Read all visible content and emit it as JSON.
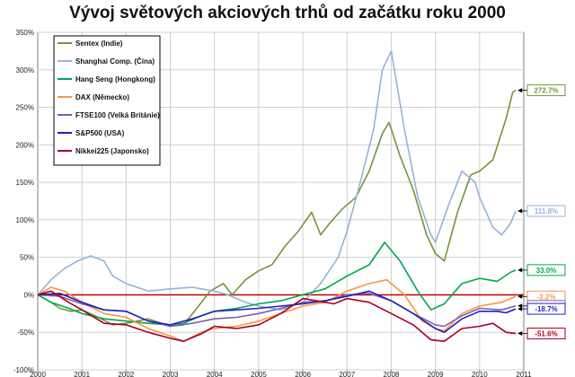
{
  "chart_data": {
    "type": "line",
    "title": "Vývoj světových akciových trhů od začátku roku 2000",
    "xlabel": "",
    "ylabel": "",
    "xlim": [
      2000,
      2011
    ],
    "ylim": [
      -100,
      350
    ],
    "x_ticks": [
      "2000",
      "2001",
      "2002",
      "2003",
      "2004",
      "2005",
      "2006",
      "2007",
      "2008",
      "2009",
      "2010",
      "2011"
    ],
    "y_ticks": [
      "-100%",
      "-50%",
      "0%",
      "50%",
      "100%",
      "150%",
      "200%",
      "250%",
      "300%",
      "350%"
    ],
    "grid": true,
    "legend_position": "top-left",
    "reference_line": {
      "y": 0,
      "color": "#c00000"
    },
    "series": [
      {
        "name": "Sentex (Indie)",
        "color": "#77933c",
        "end_label": "272.7%",
        "x": [
          2000,
          2000.25,
          2000.5,
          2000.75,
          2001,
          2001.3,
          2001.7,
          2002,
          2002.5,
          2003,
          2003.3,
          2003.6,
          2003.9,
          2004.2,
          2004.4,
          2004.7,
          2005,
          2005.3,
          2005.6,
          2005.9,
          2006.2,
          2006.4,
          2006.6,
          2006.9,
          2007.2,
          2007.5,
          2007.8,
          2007.95,
          2008.2,
          2008.5,
          2008.8,
          2009.0,
          2009.2,
          2009.5,
          2009.8,
          2010,
          2010.3,
          2010.6,
          2010.75,
          2010.82
        ],
        "y": [
          0,
          -8,
          -18,
          -22,
          -20,
          -28,
          -40,
          -38,
          -32,
          -42,
          -40,
          -18,
          5,
          15,
          0,
          20,
          32,
          40,
          65,
          85,
          110,
          80,
          95,
          115,
          130,
          165,
          215,
          230,
          185,
          140,
          80,
          55,
          45,
          110,
          160,
          165,
          180,
          235,
          270,
          272.7
        ]
      },
      {
        "name": "Shanghai Comp. (Čína)",
        "color": "#95b3d7",
        "end_label": "111.8%",
        "x": [
          2000,
          2000.3,
          2000.6,
          2000.9,
          2001.2,
          2001.5,
          2001.7,
          2002,
          2002.5,
          2003,
          2003.5,
          2004,
          2004.3,
          2004.7,
          2005,
          2005.5,
          2006,
          2006.4,
          2006.8,
          2007,
          2007.3,
          2007.6,
          2007.8,
          2008.0,
          2008.3,
          2008.6,
          2008.9,
          2009.0,
          2009.3,
          2009.6,
          2009.9,
          2010,
          2010.3,
          2010.5,
          2010.7,
          2010.82
        ],
        "y": [
          0,
          20,
          35,
          45,
          52,
          45,
          25,
          15,
          5,
          8,
          10,
          5,
          0,
          -10,
          -15,
          -20,
          -10,
          15,
          50,
          85,
          150,
          220,
          300,
          325,
          220,
          130,
          80,
          70,
          120,
          165,
          150,
          130,
          90,
          80,
          95,
          111.8
        ]
      },
      {
        "name": "Hang Seng (Hongkong)",
        "color": "#00a651",
        "end_label": "33.0%",
        "x": [
          2000,
          2000.3,
          2000.7,
          2001,
          2001.5,
          2002,
          2002.5,
          2003,
          2003.3,
          2003.7,
          2004,
          2004.5,
          2005,
          2005.5,
          2006,
          2006.5,
          2007,
          2007.5,
          2007.85,
          2008.2,
          2008.6,
          2008.9,
          2009.2,
          2009.6,
          2010,
          2010.4,
          2010.7,
          2010.82
        ],
        "y": [
          0,
          -10,
          -18,
          -25,
          -32,
          -35,
          -38,
          -40,
          -38,
          -28,
          -22,
          -18,
          -12,
          -8,
          0,
          8,
          25,
          40,
          70,
          45,
          5,
          -20,
          -12,
          15,
          22,
          18,
          30,
          33
        ]
      },
      {
        "name": "DAX (Německo)",
        "color": "#f79646",
        "end_label": "-2.2%",
        "x": [
          2000,
          2000.3,
          2000.6,
          2001,
          2001.5,
          2002,
          2002.5,
          2003,
          2003.3,
          2003.7,
          2004,
          2004.5,
          2005,
          2005.5,
          2006,
          2006.5,
          2007,
          2007.5,
          2007.9,
          2008.3,
          2008.7,
          2009.0,
          2009.2,
          2009.6,
          2010,
          2010.5,
          2010.82
        ],
        "y": [
          0,
          10,
          5,
          -10,
          -25,
          -30,
          -45,
          -55,
          -62,
          -50,
          -45,
          -42,
          -35,
          -25,
          -15,
          -10,
          5,
          15,
          20,
          0,
          -35,
          -45,
          -48,
          -25,
          -15,
          -10,
          -2.2
        ]
      },
      {
        "name": "FTSE100 (Velká Británie)",
        "color": "#7f5fa8",
        "end_label": "-14.8%",
        "x": [
          2000,
          2000.5,
          2001,
          2001.5,
          2002,
          2002.5,
          2003,
          2003.5,
          2004,
          2004.5,
          2005,
          2005.5,
          2006,
          2006.5,
          2007,
          2007.5,
          2008,
          2008.5,
          2009.0,
          2009.2,
          2009.6,
          2010,
          2010.5,
          2010.82
        ],
        "y": [
          0,
          -2,
          -12,
          -20,
          -22,
          -35,
          -42,
          -38,
          -32,
          -30,
          -25,
          -18,
          -10,
          -8,
          0,
          2,
          -8,
          -25,
          -40,
          -42,
          -28,
          -18,
          -20,
          -14.8
        ]
      },
      {
        "name": "S&P500 (USA)",
        "color": "#1f1fbf",
        "end_label": "-18.7%",
        "x": [
          2000,
          2000.5,
          2001,
          2001.5,
          2002,
          2002.5,
          2003,
          2003.5,
          2004,
          2004.5,
          2005,
          2005.5,
          2006,
          2006.5,
          2007,
          2007.5,
          2008,
          2008.5,
          2009.0,
          2009.2,
          2009.6,
          2010,
          2010.4,
          2010.6,
          2010.82
        ],
        "y": [
          0,
          2,
          -10,
          -20,
          -22,
          -35,
          -40,
          -32,
          -22,
          -20,
          -18,
          -15,
          -12,
          -8,
          -2,
          5,
          -8,
          -25,
          -45,
          -50,
          -32,
          -22,
          -22,
          -24,
          -18.7
        ]
      },
      {
        "name": "Nikkei225 (Japonsko)",
        "color": "#a50021",
        "end_label": "-51.6%",
        "x": [
          2000,
          2000.3,
          2000.7,
          2001,
          2001.5,
          2002,
          2002.5,
          2003,
          2003.3,
          2003.7,
          2004,
          2004.5,
          2005,
          2005.5,
          2006,
          2006.3,
          2006.7,
          2007,
          2007.5,
          2008,
          2008.5,
          2008.9,
          2009.2,
          2009.6,
          2010,
          2010.3,
          2010.6,
          2010.82
        ],
        "y": [
          0,
          5,
          -10,
          -20,
          -38,
          -40,
          -50,
          -58,
          -62,
          -52,
          -42,
          -45,
          -40,
          -25,
          -5,
          -8,
          -12,
          -5,
          -10,
          -25,
          -40,
          -60,
          -62,
          -45,
          -42,
          -38,
          -50,
          -51.6
        ]
      }
    ]
  }
}
